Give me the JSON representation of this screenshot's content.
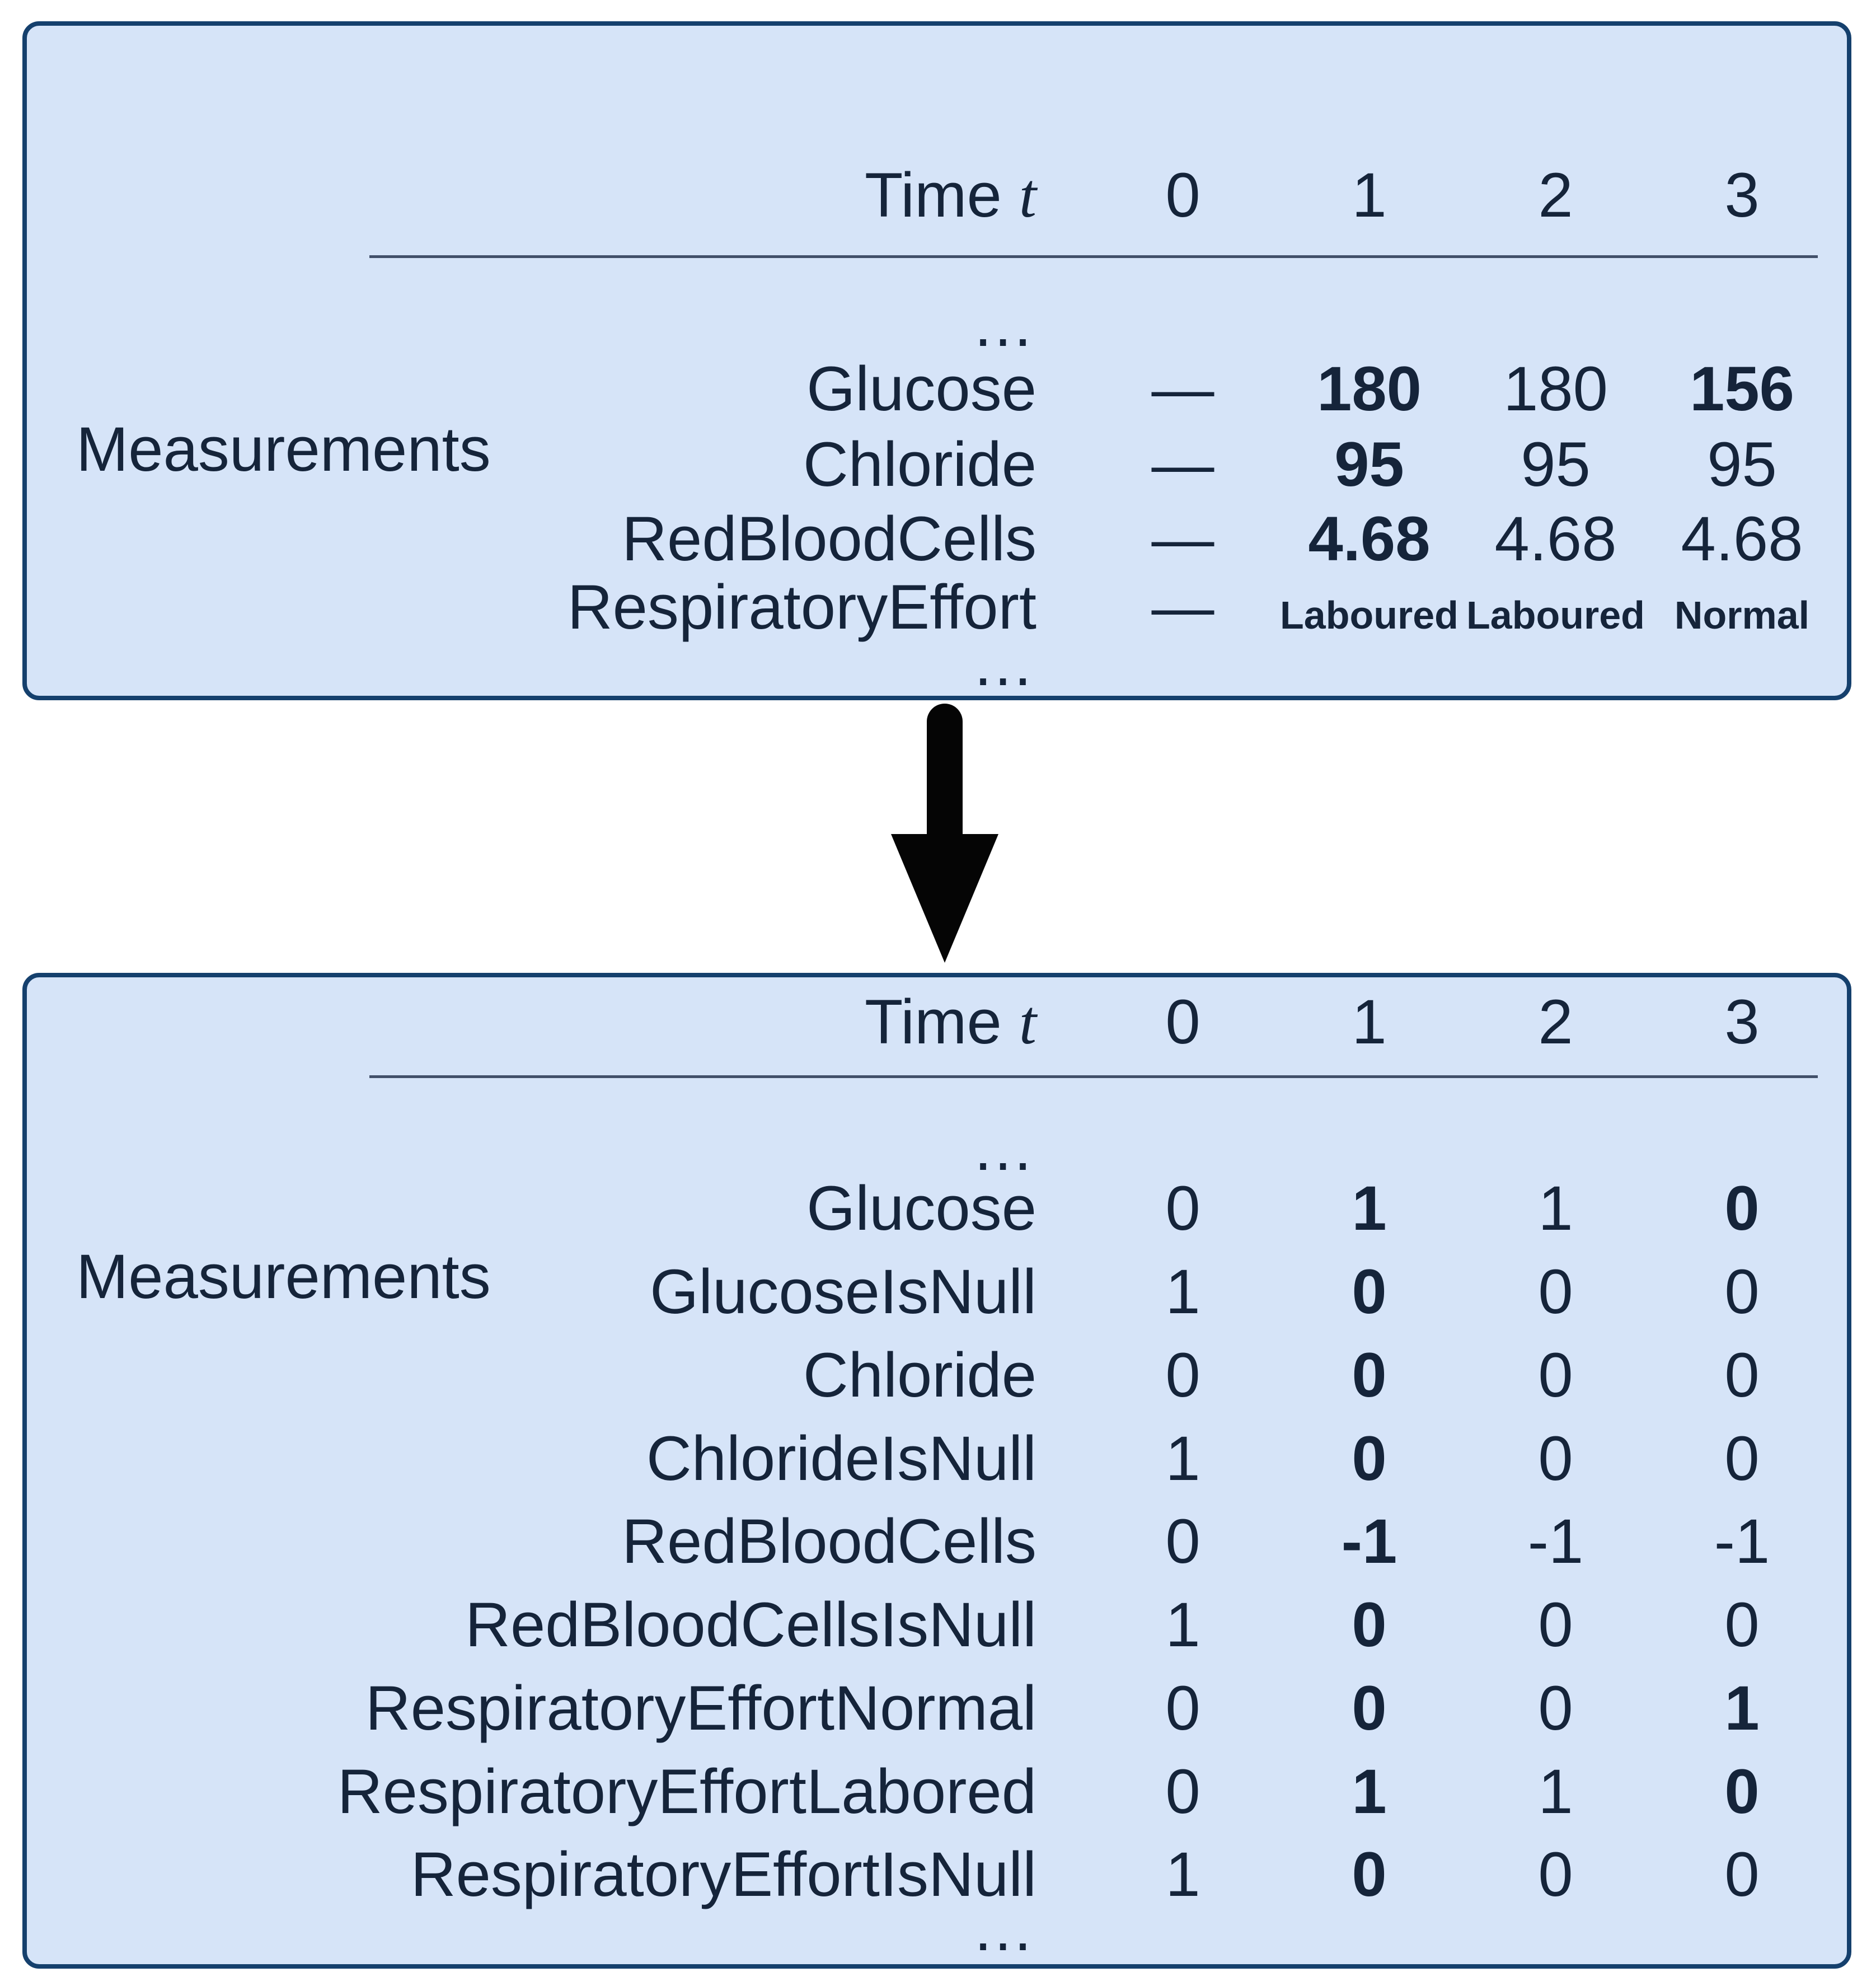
{
  "colors": {
    "panel_background": "#d6e4f8",
    "panel_border": "#15406d",
    "text": "#15243a",
    "divider": "#42506a",
    "arrow": "#050505"
  },
  "header": {
    "time_label": "Time",
    "time_var": "t",
    "columns": [
      "0",
      "1",
      "2",
      "3"
    ]
  },
  "ellipsis": "…",
  "top_panel": {
    "section_label": "Measurements",
    "rows": [
      {
        "label": "Glucose",
        "values": [
          "—",
          "180",
          "180",
          "156"
        ],
        "bold": [
          false,
          true,
          false,
          true
        ],
        "small": false
      },
      {
        "label": "Chloride",
        "values": [
          "—",
          "95",
          "95",
          "95"
        ],
        "bold": [
          false,
          true,
          false,
          false
        ],
        "small": false
      },
      {
        "label": "RedBloodCells",
        "values": [
          "—",
          "4.68",
          "4.68",
          "4.68"
        ],
        "bold": [
          false,
          true,
          false,
          false
        ],
        "small": false
      },
      {
        "label": "RespiratoryEffort",
        "values": [
          "—",
          "Laboured",
          "Laboured",
          "Normal"
        ],
        "bold": [
          false,
          true,
          true,
          true
        ],
        "small": true
      }
    ]
  },
  "bottom_panel": {
    "section_label": "Measurements",
    "rows": [
      {
        "label": "Glucose",
        "values": [
          "0",
          "1",
          "1",
          "0"
        ],
        "bold": [
          false,
          true,
          false,
          true
        ],
        "small": false
      },
      {
        "label": "GlucoseIsNull",
        "values": [
          "1",
          "0",
          "0",
          "0"
        ],
        "bold": [
          false,
          true,
          false,
          false
        ],
        "small": false
      },
      {
        "label": "Chloride",
        "values": [
          "0",
          "0",
          "0",
          "0"
        ],
        "bold": [
          false,
          true,
          false,
          false
        ],
        "small": false
      },
      {
        "label": "ChlorideIsNull",
        "values": [
          "1",
          "0",
          "0",
          "0"
        ],
        "bold": [
          false,
          true,
          false,
          false
        ],
        "small": false
      },
      {
        "label": "RedBloodCells",
        "values": [
          "0",
          "-1",
          "-1",
          "-1"
        ],
        "bold": [
          false,
          true,
          false,
          false
        ],
        "small": false
      },
      {
        "label": "RedBloodCellsIsNull",
        "values": [
          "1",
          "0",
          "0",
          "0"
        ],
        "bold": [
          false,
          true,
          false,
          false
        ],
        "small": false
      },
      {
        "label": "RespiratoryEffortNormal",
        "values": [
          "0",
          "0",
          "0",
          "1"
        ],
        "bold": [
          false,
          true,
          false,
          true
        ],
        "small": false
      },
      {
        "label": "RespiratoryEffortLabored",
        "values": [
          "0",
          "1",
          "1",
          "0"
        ],
        "bold": [
          false,
          true,
          false,
          true
        ],
        "small": false
      },
      {
        "label": "RespiratoryEffortIsNull",
        "values": [
          "1",
          "0",
          "0",
          "0"
        ],
        "bold": [
          false,
          true,
          false,
          false
        ],
        "small": false
      }
    ]
  }
}
